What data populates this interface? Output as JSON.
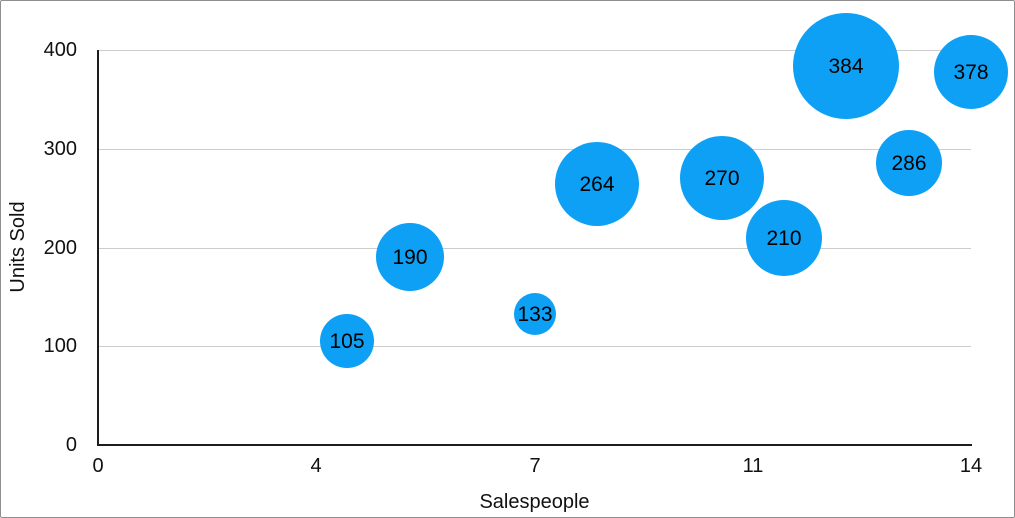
{
  "chart_data": {
    "type": "scatter",
    "subtype": "bubble",
    "title": "",
    "xlabel": "Salespeople",
    "ylabel": "Units Sold",
    "xlim": [
      0,
      14
    ],
    "ylim": [
      0,
      400
    ],
    "grid": "horizontal",
    "legend": "none",
    "x_ticks": [
      {
        "value": 0,
        "label": "0"
      },
      {
        "value": 3.5,
        "label": "4"
      },
      {
        "value": 7,
        "label": "7"
      },
      {
        "value": 10.5,
        "label": "11"
      },
      {
        "value": 14,
        "label": "14"
      }
    ],
    "y_ticks": [
      {
        "value": 0,
        "label": "0"
      },
      {
        "value": 100,
        "label": "100"
      },
      {
        "value": 200,
        "label": "200"
      },
      {
        "value": 300,
        "label": "300"
      },
      {
        "value": 400,
        "label": "400"
      }
    ],
    "points": [
      {
        "x": 4,
        "y": 105,
        "label": "105",
        "radius_px": 27
      },
      {
        "x": 5,
        "y": 190,
        "label": "190",
        "radius_px": 34
      },
      {
        "x": 7,
        "y": 133,
        "label": "133",
        "radius_px": 21
      },
      {
        "x": 8,
        "y": 264,
        "label": "264",
        "radius_px": 42
      },
      {
        "x": 10,
        "y": 270,
        "label": "270",
        "radius_px": 42
      },
      {
        "x": 11,
        "y": 210,
        "label": "210",
        "radius_px": 38
      },
      {
        "x": 12,
        "y": 384,
        "label": "384",
        "radius_px": 53
      },
      {
        "x": 13,
        "y": 286,
        "label": "286",
        "radius_px": 33
      },
      {
        "x": 14,
        "y": 378,
        "label": "378",
        "radius_px": 37
      }
    ],
    "colors": {
      "bubble_fill": "#0da0f5",
      "bubble_label": "#000000",
      "gridline": "#cccccc",
      "axis_line": "#1d1d1f",
      "text": "#111111",
      "background": "#ffffff",
      "frame_border": "#8e8e8e"
    }
  }
}
